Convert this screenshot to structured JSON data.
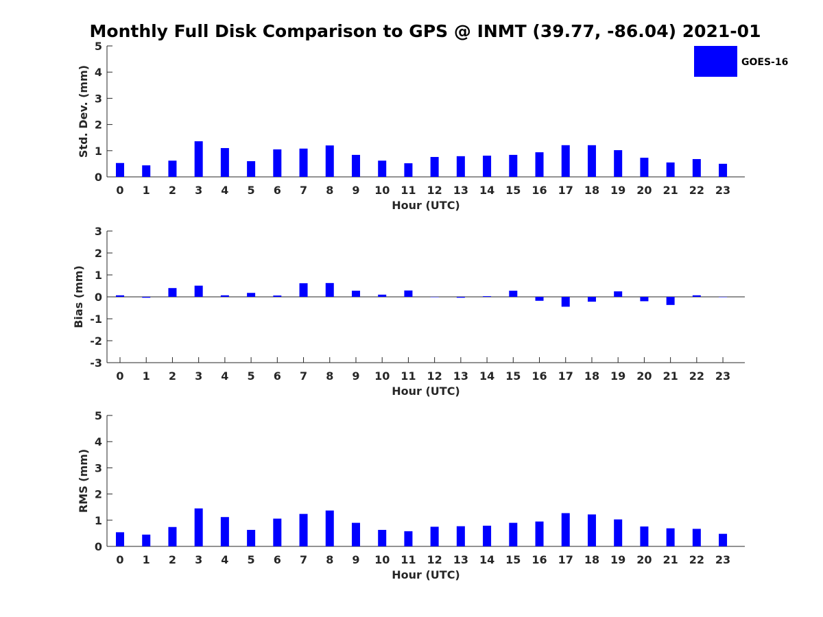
{
  "title": "Monthly Full Disk Comparison to GPS @ INMT (39.77, -86.04) 2021-01",
  "legend": {
    "label": "GOES-16",
    "color": "#0000ff"
  },
  "colors": {
    "bar": "#0000ff",
    "axis": "#262626"
  },
  "chart_data": [
    {
      "type": "bar",
      "xlabel": "Hour (UTC)",
      "ylabel": "Std. Dev. (mm)",
      "categories": [
        "0",
        "1",
        "2",
        "3",
        "4",
        "5",
        "6",
        "7",
        "8",
        "9",
        "10",
        "11",
        "12",
        "13",
        "14",
        "15",
        "16",
        "17",
        "18",
        "19",
        "20",
        "21",
        "22",
        "23"
      ],
      "ylim": [
        0,
        5
      ],
      "yticks": [
        "0",
        "1",
        "2",
        "3",
        "4",
        "5"
      ],
      "series": [
        {
          "name": "GOES-16",
          "values": [
            0.53,
            0.44,
            0.62,
            1.36,
            1.1,
            0.6,
            1.05,
            1.08,
            1.2,
            0.84,
            0.62,
            0.52,
            0.76,
            0.79,
            0.81,
            0.84,
            0.94,
            1.21,
            1.21,
            1.02,
            0.73,
            0.55,
            0.68,
            0.5
          ]
        }
      ]
    },
    {
      "type": "bar",
      "xlabel": "Hour (UTC)",
      "ylabel": "Bias (mm)",
      "categories": [
        "0",
        "1",
        "2",
        "3",
        "4",
        "5",
        "6",
        "7",
        "8",
        "9",
        "10",
        "11",
        "12",
        "13",
        "14",
        "15",
        "16",
        "17",
        "18",
        "19",
        "20",
        "21",
        "22",
        "23"
      ],
      "ylim": [
        -3,
        3
      ],
      "yticks": [
        "-3",
        "-2",
        "-1",
        "0",
        "1",
        "2",
        "3"
      ],
      "series": [
        {
          "name": "GOES-16",
          "values": [
            0.07,
            -0.04,
            0.4,
            0.51,
            0.07,
            0.18,
            0.06,
            0.62,
            0.63,
            0.28,
            0.1,
            0.29,
            0.0,
            -0.04,
            0.03,
            0.28,
            -0.18,
            -0.45,
            -0.22,
            0.25,
            -0.2,
            -0.37,
            0.07,
            -0.01
          ]
        }
      ]
    },
    {
      "type": "bar",
      "xlabel": "Hour (UTC)",
      "ylabel": "RMS (mm)",
      "categories": [
        "0",
        "1",
        "2",
        "3",
        "4",
        "5",
        "6",
        "7",
        "8",
        "9",
        "10",
        "11",
        "12",
        "13",
        "14",
        "15",
        "16",
        "17",
        "18",
        "19",
        "20",
        "21",
        "22",
        "23"
      ],
      "ylim": [
        0,
        5
      ],
      "yticks": [
        "0",
        "1",
        "2",
        "3",
        "4",
        "5"
      ],
      "series": [
        {
          "name": "GOES-16",
          "values": [
            0.54,
            0.45,
            0.74,
            1.45,
            1.12,
            0.63,
            1.06,
            1.24,
            1.37,
            0.9,
            0.63,
            0.58,
            0.75,
            0.77,
            0.79,
            0.9,
            0.95,
            1.27,
            1.22,
            1.03,
            0.76,
            0.69,
            0.67,
            0.48
          ]
        }
      ]
    }
  ]
}
